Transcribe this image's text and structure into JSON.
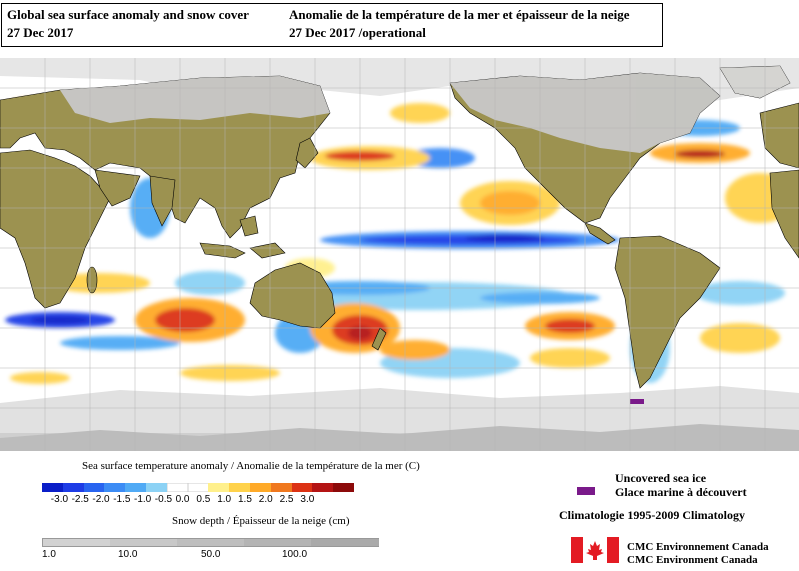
{
  "title": {
    "en_line1": "Global sea surface anomaly and snow cover",
    "en_line2": "27 Dec 2017",
    "fr_line1": "Anomalie de la température de la mer et épaisseur de la neige",
    "fr_line2": "27 Dec 2017  /operational"
  },
  "sst_legend": {
    "title": "Sea surface temperature anomaly / Anomalie de la température de la mer (C)",
    "ticks": [
      "-3.0",
      "-2.5",
      "-2.0",
      "-1.5",
      "-1.0",
      "-0.5",
      "0.0",
      "0.5",
      "1.0",
      "1.5",
      "2.0",
      "2.5",
      "3.0"
    ],
    "colors": [
      "#0a1ec8",
      "#1e3ce6",
      "#2864f0",
      "#3c8cf5",
      "#50aaf5",
      "#8cd2f5",
      "#ffffff",
      "#ffffff",
      "#fff08c",
      "#ffd24b",
      "#ffaa28",
      "#f0781e",
      "#dc3214",
      "#b41414",
      "#8c0a0a"
    ]
  },
  "snow_legend": {
    "title": "Snow depth / Épaisseur de la neige (cm)",
    "ticks": [
      "1.0",
      "10.0",
      "50.0",
      "100.0"
    ],
    "colors": [
      "#d2d2d2",
      "#c8c8c8",
      "#bebebe",
      "#b4b4b4",
      "#aaaaaa"
    ]
  },
  "sea_ice": {
    "line1": "Uncovered sea ice",
    "line2": "Glace marine à découvert",
    "color": "#7a1a8a"
  },
  "climatology": "Climatologie 1995-2009 Climatology",
  "credit": {
    "line1": "CMC  Environnement  Canada",
    "line2": "CMC  Environment  Canada"
  },
  "map_colors": {
    "land": "#9c9250",
    "snow": "#c8c8c8",
    "ice": "#e6e6e6",
    "ocean": "#ffffff",
    "grid": "#b4b4b4"
  }
}
